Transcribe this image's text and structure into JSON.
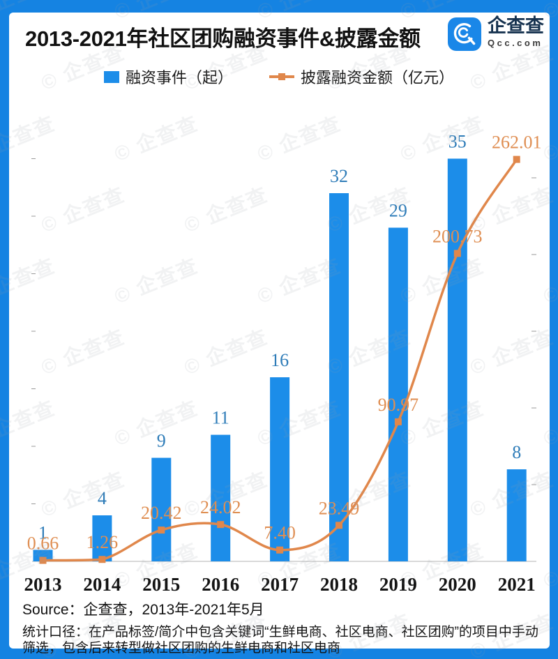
{
  "header": {
    "title": "2013-2021年社区团购融资事件&披露金额",
    "logo": {
      "name": "企查查",
      "domain": "Qcc.com"
    }
  },
  "chart_data": {
    "type": "bar+line",
    "categories": [
      "2013",
      "2014",
      "2015",
      "2016",
      "2017",
      "2018",
      "2019",
      "2020",
      "2021"
    ],
    "series": [
      {
        "name": "融资事件（起）",
        "type": "bar",
        "axis": "left",
        "values": [
          1,
          4,
          9,
          11,
          16,
          32,
          29,
          35,
          8
        ],
        "color": "#1c8de9"
      },
      {
        "name": "披露融资金额（亿元）",
        "type": "line",
        "axis": "right",
        "values": [
          0.66,
          1.26,
          20.42,
          24.02,
          7.4,
          23.49,
          90.97,
          200.73,
          262.01
        ],
        "color": "#e0874b",
        "marker": "square"
      }
    ],
    "title": "2013-2021年社区团购融资事件&披露金额",
    "xlabel": "",
    "ylabel_left": "融资事件（起）",
    "ylabel_right": "披露融资金额（亿元）",
    "left_axis": {
      "min": 0,
      "max": 38.5,
      "tick_step": 5,
      "tick_labels_visible": false
    },
    "right_axis": {
      "min": 0,
      "max": 290,
      "tick_step": 50,
      "tick_labels_visible": false
    },
    "grid": false,
    "legend_position": "top",
    "bar_value_labels": [
      "1",
      "4",
      "9",
      "11",
      "16",
      "32",
      "29",
      "35",
      "8"
    ],
    "line_value_labels": [
      "0.66",
      "1.26",
      "20.42",
      "24.02",
      "7.40",
      "23.49",
      "90.97",
      "200.73",
      "262.01"
    ]
  },
  "footer": {
    "source": "Source：企查查，2013年-2021年5月",
    "caption": "统计口径：在产品标签/简介中包含关键词“生鲜电商、社区电商、社区团购”的项目中手动筛选，包含后来转型做社区团购的生鲜电商和社区电商"
  },
  "watermark": {
    "glyph": "©",
    "text": "企查查"
  },
  "colors": {
    "frame": "#1583e2",
    "bar": "#1c8de9",
    "bar_label": "#2e7cb8",
    "line": "#e0874b",
    "line_label": "#df8e52",
    "axis": "#d9d9d9",
    "tick": "#999999"
  }
}
